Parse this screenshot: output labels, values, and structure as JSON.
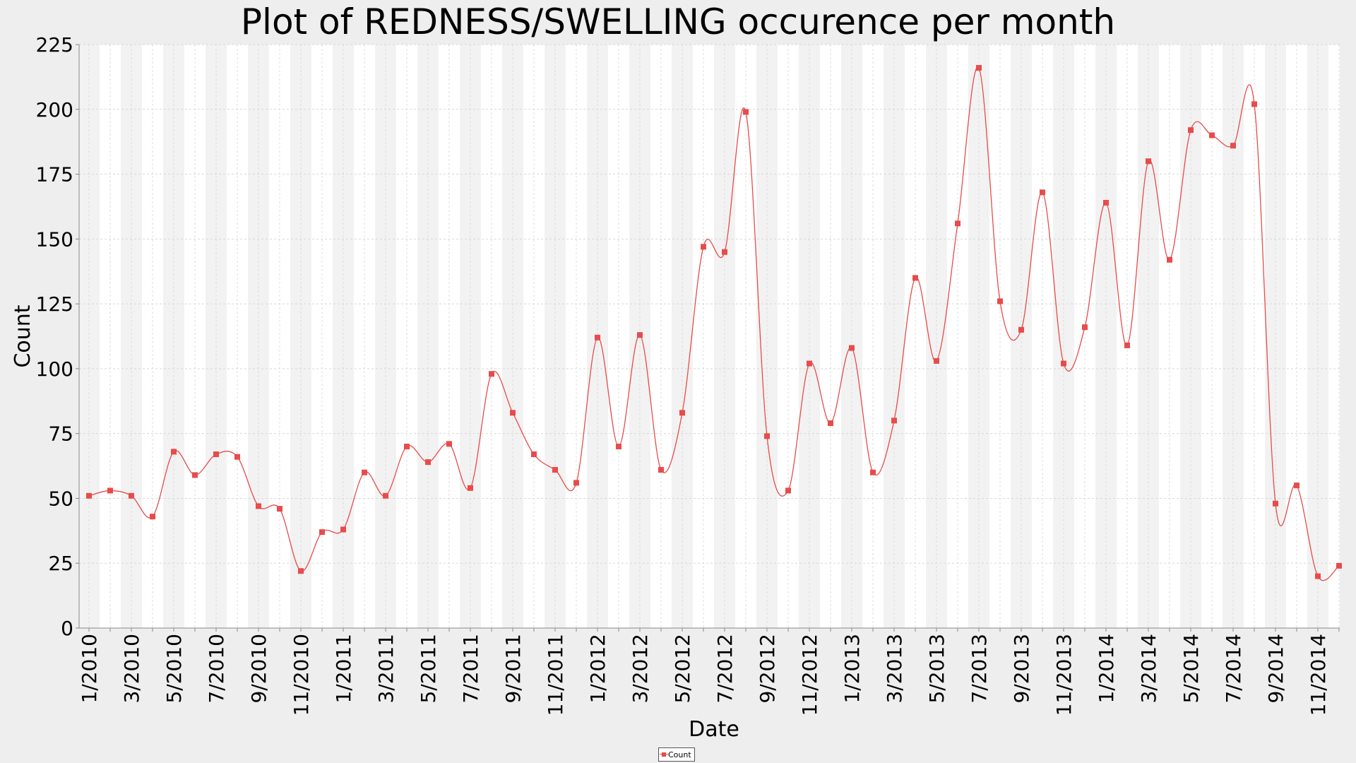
{
  "chart_data": {
    "type": "line",
    "title": "Plot of REDNESS/SWELLING occurence per month",
    "xlabel": "Date",
    "ylabel": "Count",
    "ylim": [
      0,
      225
    ],
    "yticks": [
      0,
      25,
      50,
      75,
      100,
      125,
      150,
      175,
      200,
      225
    ],
    "xtick_labels": [
      "1/2010",
      "3/2010",
      "5/2010",
      "7/2010",
      "9/2010",
      "11/2010",
      "1/2011",
      "3/2011",
      "5/2011",
      "7/2011",
      "9/2011",
      "11/2011",
      "1/2012",
      "3/2012",
      "5/2012",
      "7/2012",
      "9/2012",
      "11/2012",
      "1/2013",
      "3/2013",
      "5/2013",
      "7/2013",
      "9/2013",
      "11/2013",
      "1/2014",
      "3/2014",
      "5/2014",
      "7/2014",
      "9/2014",
      "11/2014"
    ],
    "grid": true,
    "alternating_month_bands": true,
    "legend_position": "bottom-center",
    "series": [
      {
        "name": "Count",
        "color": "#e84b4b",
        "marker": "square",
        "x": [
          "1/2010",
          "2/2010",
          "3/2010",
          "4/2010",
          "5/2010",
          "6/2010",
          "7/2010",
          "8/2010",
          "9/2010",
          "10/2010",
          "11/2010",
          "12/2010",
          "1/2011",
          "2/2011",
          "3/2011",
          "4/2011",
          "5/2011",
          "6/2011",
          "7/2011",
          "8/2011",
          "9/2011",
          "10/2011",
          "11/2011",
          "12/2011",
          "1/2012",
          "2/2012",
          "3/2012",
          "4/2012",
          "5/2012",
          "6/2012",
          "7/2012",
          "8/2012",
          "9/2012",
          "10/2012",
          "11/2012",
          "12/2012",
          "1/2013",
          "2/2013",
          "3/2013",
          "4/2013",
          "5/2013",
          "6/2013",
          "7/2013",
          "8/2013",
          "9/2013",
          "10/2013",
          "11/2013",
          "12/2013",
          "1/2014",
          "2/2014",
          "3/2014",
          "4/2014",
          "5/2014",
          "6/2014",
          "7/2014",
          "8/2014",
          "9/2014",
          "10/2014",
          "11/2014",
          "12/2014"
        ],
        "values": [
          51,
          53,
          51,
          43,
          68,
          59,
          67,
          66,
          47,
          46,
          22,
          37,
          38,
          60,
          51,
          70,
          64,
          71,
          54,
          98,
          83,
          67,
          61,
          56,
          112,
          70,
          113,
          61,
          83,
          147,
          145,
          199,
          74,
          53,
          102,
          79,
          108,
          60,
          80,
          135,
          103,
          156,
          216,
          126,
          115,
          168,
          102,
          116,
          164,
          109,
          180,
          142,
          192,
          190,
          186,
          202,
          48,
          55,
          20,
          24
        ]
      }
    ]
  }
}
